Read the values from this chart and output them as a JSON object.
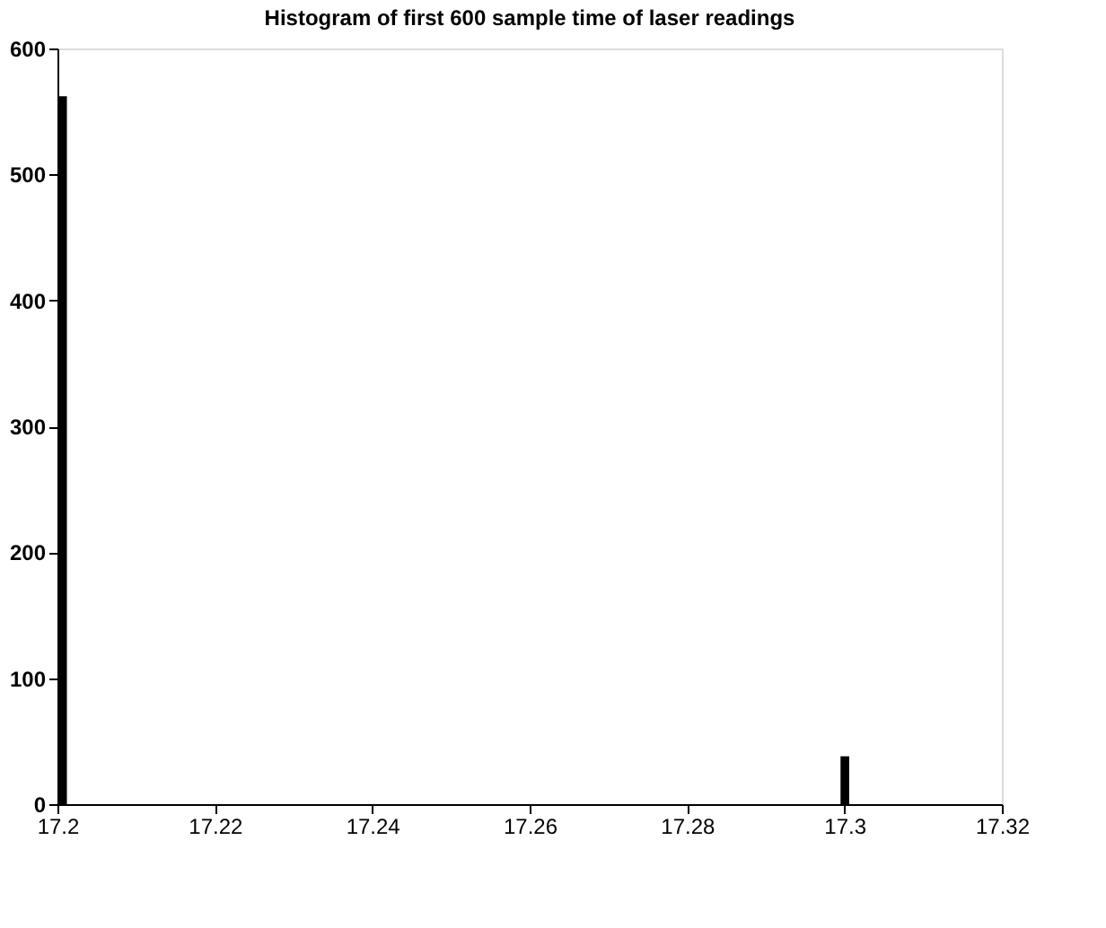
{
  "chart_data": {
    "type": "histogram",
    "title": "Histogram of first 600 sample time of laser readings",
    "bins": [
      17.2,
      17.2012,
      17.2995,
      17.3006
    ],
    "values": [
      562,
      0,
      38
    ],
    "color": "#000000",
    "xlim": [
      17.2,
      17.32
    ],
    "xticks": [
      17.2,
      17.22,
      17.24,
      17.26,
      17.28,
      17.3,
      17.32
    ],
    "ylim": [
      0,
      600
    ],
    "yticks": [
      0,
      100,
      200,
      300,
      400,
      500,
      600
    ],
    "grid": false
  }
}
